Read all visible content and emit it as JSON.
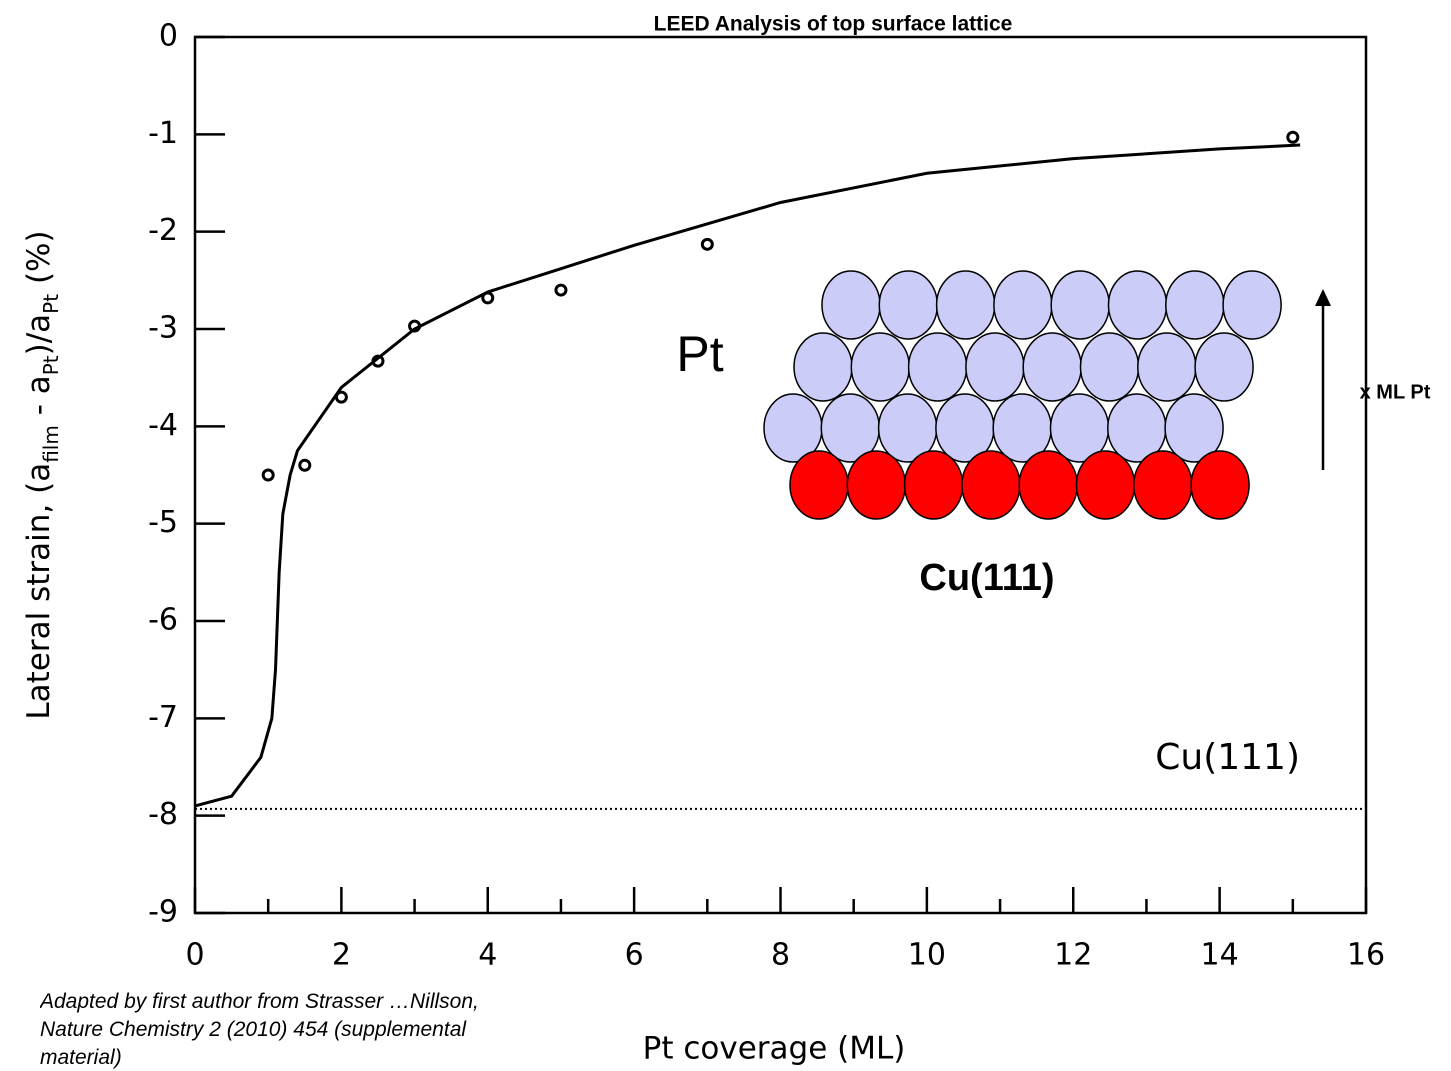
{
  "chart_data": {
    "type": "scatter",
    "title": "LEED Analysis of top surface lattice",
    "x_label": "Pt coverage (ML)",
    "y_label": [
      {
        "text": "Lateral strain, (a"
      },
      {
        "text": "film",
        "sub": true
      },
      {
        "text": " - a"
      },
      {
        "text": "Pt",
        "sub": true
      },
      {
        "text": ")/a"
      },
      {
        "text": "Pt",
        "sub": true
      },
      {
        "text": " (%)"
      }
    ],
    "xlim": [
      0,
      16
    ],
    "ylim": [
      -9,
      0
    ],
    "xticks": [
      0,
      2,
      4,
      6,
      8,
      10,
      12,
      14,
      16
    ],
    "xminor": [
      1,
      3,
      5,
      7,
      9,
      11,
      13,
      15
    ],
    "yticks": [
      0,
      -1,
      -2,
      -3,
      -4,
      -5,
      -6,
      -7,
      -8,
      -9
    ],
    "series": [
      {
        "type": "scatter",
        "color": "#000000",
        "x": [
          1,
          1.5,
          2,
          2.5,
          3,
          4,
          5,
          7,
          15
        ],
        "values": [
          -4.5,
          -4.4,
          -3.7,
          -3.33,
          -2.97,
          -2.68,
          -2.6,
          -2.13,
          -1.03
        ]
      },
      {
        "type": "line",
        "color": "#000000",
        "x": [
          0,
          0.5,
          0.9,
          1.05,
          1.1,
          1.15,
          1.2,
          1.3,
          1.4,
          2,
          3,
          4,
          5,
          6,
          8,
          10,
          12,
          14,
          15.1
        ],
        "values": [
          -7.9,
          -7.8,
          -7.4,
          -7.0,
          -6.5,
          -5.5,
          -4.9,
          -4.5,
          -4.25,
          -3.6,
          -3.0,
          -2.62,
          -2.38,
          -2.14,
          -1.7,
          -1.4,
          -1.25,
          -1.15,
          -1.11
        ]
      }
    ],
    "reference_line": {
      "value": -7.93,
      "label": "Cu(111)",
      "style": "dotted"
    },
    "inset": {
      "pt_label": "Pt",
      "substrate_label": "Cu(111)",
      "arrow_label": "x ML Pt"
    },
    "note": [
      "Adapted  by first author from Strasser …Nillson,",
      "Nature Chemistry 2 (2010) 454 (supplemental",
      "material)"
    ]
  }
}
